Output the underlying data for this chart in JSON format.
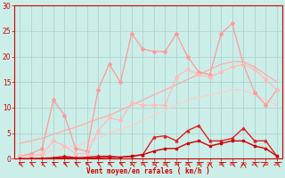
{
  "background_color": "#cceee8",
  "grid_color": "#aacccc",
  "xlabel": "Vent moyen/en rafales ( km/h )",
  "label_color": "#cc0000",
  "xlim": [
    -0.5,
    23.5
  ],
  "ylim": [
    0,
    30
  ],
  "yticks": [
    0,
    5,
    10,
    15,
    20,
    25,
    30
  ],
  "xticks": [
    0,
    1,
    2,
    3,
    4,
    5,
    6,
    7,
    8,
    9,
    10,
    11,
    12,
    13,
    14,
    15,
    16,
    17,
    18,
    19,
    20,
    21,
    22,
    23
  ],
  "x": [
    0,
    1,
    2,
    3,
    4,
    5,
    6,
    7,
    8,
    9,
    10,
    11,
    12,
    13,
    14,
    15,
    16,
    17,
    18,
    19,
    20,
    21,
    22,
    23
  ],
  "series": [
    {
      "name": "linear_upper",
      "y": [
        3.0,
        3.5,
        4.0,
        4.8,
        5.5,
        6.2,
        7.0,
        7.8,
        8.5,
        9.5,
        10.5,
        11.5,
        12.5,
        13.5,
        14.5,
        15.5,
        16.5,
        17.5,
        18.5,
        19.0,
        19.0,
        18.0,
        16.5,
        15.0
      ],
      "color": "#ffaaaa",
      "lw": 0.9,
      "marker": null,
      "zorder": 2
    },
    {
      "name": "linear_lower",
      "y": [
        0.5,
        0.7,
        1.0,
        1.5,
        2.0,
        2.5,
        3.2,
        4.0,
        5.0,
        5.8,
        6.5,
        7.5,
        8.5,
        9.5,
        10.5,
        11.5,
        12.0,
        12.5,
        13.0,
        13.5,
        13.5,
        12.5,
        11.5,
        10.5
      ],
      "color": "#ffcccc",
      "lw": 0.9,
      "marker": null,
      "zorder": 2
    },
    {
      "name": "jagged_upper",
      "y": [
        0.5,
        1.0,
        2.0,
        11.5,
        8.5,
        2.0,
        1.5,
        13.5,
        18.5,
        15.0,
        24.5,
        21.5,
        21.0,
        21.0,
        24.5,
        20.0,
        17.0,
        16.5,
        24.5,
        26.5,
        18.5,
        13.0,
        10.5,
        13.5
      ],
      "color": "#ff9999",
      "lw": 0.9,
      "marker": "D",
      "ms": 2,
      "zorder": 3
    },
    {
      "name": "jagged_mid",
      "y": [
        0.5,
        0.5,
        0.8,
        3.5,
        2.5,
        1.0,
        1.0,
        5.5,
        8.0,
        7.5,
        11.0,
        10.5,
        10.5,
        10.5,
        16.0,
        17.5,
        16.5,
        16.0,
        17.0,
        18.0,
        18.5,
        17.5,
        15.5,
        13.5
      ],
      "color": "#ffbbbb",
      "lw": 0.9,
      "marker": "D",
      "ms": 2,
      "zorder": 3
    },
    {
      "name": "low_spike",
      "y": [
        0.0,
        0.0,
        0.1,
        0.2,
        0.5,
        0.2,
        0.3,
        0.5,
        0.5,
        0.3,
        0.5,
        0.8,
        4.2,
        4.5,
        3.5,
        5.5,
        6.5,
        3.5,
        3.5,
        4.0,
        6.0,
        3.5,
        3.5,
        0.5
      ],
      "color": "#dd2222",
      "lw": 1.0,
      "marker": "^",
      "ms": 2,
      "zorder": 4
    },
    {
      "name": "bottom_flat",
      "y": [
        0.0,
        0.0,
        0.0,
        0.1,
        0.2,
        0.1,
        0.1,
        0.2,
        0.3,
        0.3,
        0.5,
        0.8,
        1.5,
        2.0,
        2.0,
        3.0,
        3.5,
        2.5,
        3.0,
        3.5,
        3.5,
        2.5,
        2.0,
        0.5
      ],
      "color": "#cc0000",
      "lw": 1.0,
      "marker": "s",
      "ms": 1.5,
      "zorder": 4
    }
  ],
  "arrow_angles": [
    225,
    225,
    225,
    225,
    225,
    225,
    225,
    225,
    225,
    225,
    225,
    225,
    225,
    225,
    225,
    225,
    225,
    270,
    225,
    225,
    270,
    225,
    315,
    225
  ]
}
